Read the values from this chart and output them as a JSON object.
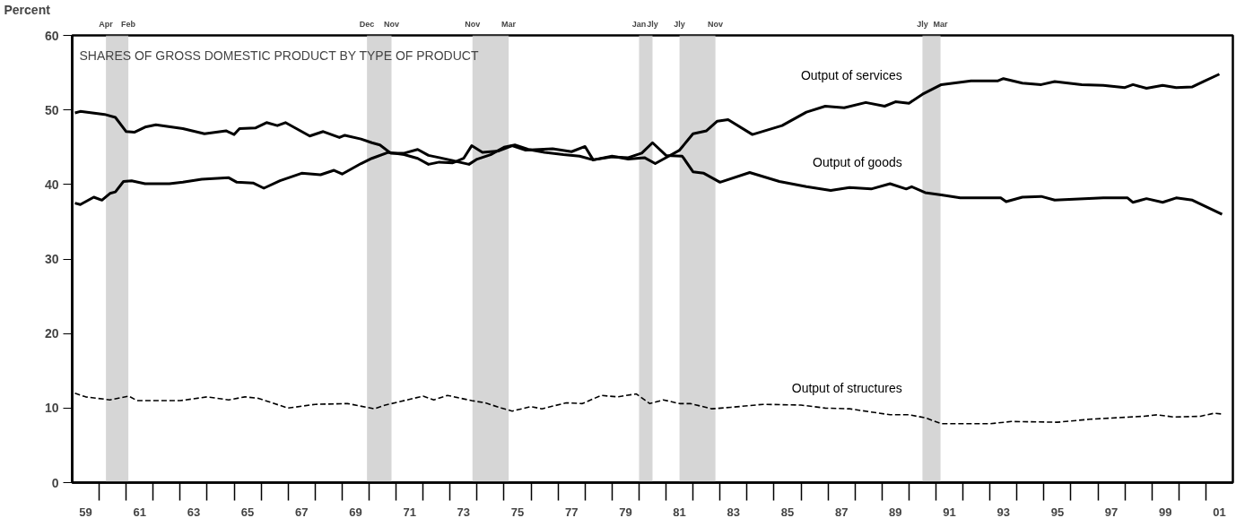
{
  "chart_data": {
    "type": "line",
    "title": "SHARES OF GROSS DOMESTIC PRODUCT BY TYPE OF PRODUCT",
    "ylabel": "Percent",
    "xlim": [
      1958.5,
      2001.5
    ],
    "ylim": [
      0,
      60
    ],
    "yticks": [
      0,
      10,
      20,
      30,
      40,
      50,
      60
    ],
    "xticks": [
      {
        "value": 1959,
        "label": "59"
      },
      {
        "value": 1961,
        "label": "61"
      },
      {
        "value": 1963,
        "label": "63"
      },
      {
        "value": 1965,
        "label": "65"
      },
      {
        "value": 1967,
        "label": "67"
      },
      {
        "value": 1969,
        "label": "69"
      },
      {
        "value": 1971,
        "label": "71"
      },
      {
        "value": 1973,
        "label": "73"
      },
      {
        "value": 1975,
        "label": "75"
      },
      {
        "value": 1977,
        "label": "77"
      },
      {
        "value": 1979,
        "label": "79"
      },
      {
        "value": 1981,
        "label": "81"
      },
      {
        "value": 1983,
        "label": "83"
      },
      {
        "value": 1985,
        "label": "85"
      },
      {
        "value": 1987,
        "label": "87"
      },
      {
        "value": 1989,
        "label": "89"
      },
      {
        "value": 1991,
        "label": "91"
      },
      {
        "value": 1993,
        "label": "93"
      },
      {
        "value": 1995,
        "label": "95"
      },
      {
        "value": 1997,
        "label": "97"
      },
      {
        "value": 1999,
        "label": "99"
      },
      {
        "value": 2001,
        "label": "01"
      }
    ],
    "annotations": [
      {
        "text": "Apr",
        "x": 1959.75,
        "y": 60
      },
      {
        "text": "Feb",
        "x": 1960.58,
        "y": 60
      },
      {
        "text": "Dec",
        "x": 1969.42,
        "y": 60
      },
      {
        "text": "Nov",
        "x": 1970.33,
        "y": 60
      },
      {
        "text": "Nov",
        "x": 1973.33,
        "y": 60
      },
      {
        "text": "Mar",
        "x": 1974.67,
        "y": 60
      },
      {
        "text": "Jan",
        "x": 1979.5,
        "y": 60
      },
      {
        "text": "Jly",
        "x": 1980.0,
        "y": 60
      },
      {
        "text": "Jly",
        "x": 1981.0,
        "y": 60
      },
      {
        "text": "Nov",
        "x": 1982.33,
        "y": 60
      },
      {
        "text": "Jly",
        "x": 1990.0,
        "y": 60
      },
      {
        "text": "Mar",
        "x": 1990.67,
        "y": 60
      }
    ],
    "bands": [
      {
        "axis": "x",
        "from": 1959.75,
        "to": 1960.58,
        "color": "#cccccc"
      },
      {
        "axis": "x",
        "from": 1969.42,
        "to": 1970.33,
        "color": "#cccccc"
      },
      {
        "axis": "x",
        "from": 1973.33,
        "to": 1974.67,
        "color": "#cccccc"
      },
      {
        "axis": "x",
        "from": 1979.5,
        "to": 1980.0,
        "color": "#cccccc"
      },
      {
        "axis": "x",
        "from": 1981.0,
        "to": 1982.33,
        "color": "#cccccc"
      },
      {
        "axis": "x",
        "from": 1990.0,
        "to": 1990.67,
        "color": "#cccccc"
      }
    ],
    "series": [
      {
        "name": "Output of services",
        "color": "#000000",
        "line_style": "solid",
        "x": [
          1958.6,
          1958.8,
          1959.7,
          1960.1,
          1960.5,
          1960.8,
          1961.2,
          1961.6,
          1962.6,
          1963.4,
          1964.2,
          1964.5,
          1964.7,
          1965.3,
          1965.7,
          1966.1,
          1966.4,
          1967.3,
          1967.8,
          1968.4,
          1968.6,
          1969.2,
          1969.6,
          1969.9,
          1970.3,
          1970.8,
          1971.3,
          1971.7,
          1972.1,
          1972.6,
          1973.2,
          1973.5,
          1974.0,
          1974.5,
          1974.9,
          1975.4,
          1976.0,
          1976.7,
          1977.3,
          1977.8,
          1978.5,
          1979.1,
          1979.7,
          1980.1,
          1980.6,
          1981.0,
          1981.5,
          1982.0,
          1982.4,
          1982.8,
          1983.7,
          1984.8,
          1985.7,
          1986.4,
          1987.1,
          1987.9,
          1988.6,
          1989.0,
          1989.5,
          1990.0,
          1990.7,
          1991.8,
          1992.8,
          1993.0,
          1993.7,
          1994.4,
          1994.9,
          1995.9,
          1996.7,
          1997.5,
          1997.8,
          1998.3,
          1998.9,
          1999.4,
          2000.0,
          2000.4,
          2001.0
        ],
        "values": [
          49.6,
          49.8,
          49.4,
          49.0,
          47.1,
          47.0,
          47.7,
          48.0,
          47.5,
          46.8,
          47.2,
          46.7,
          47.5,
          47.6,
          48.3,
          47.9,
          48.3,
          46.5,
          47.1,
          46.3,
          46.6,
          46.1,
          45.6,
          45.3,
          44.2,
          44.2,
          44.7,
          43.9,
          43.6,
          43.2,
          42.7,
          43.4,
          44.0,
          45.0,
          45.3,
          44.7,
          44.3,
          44.0,
          43.8,
          43.3,
          43.8,
          43.4,
          43.6,
          42.8,
          43.8,
          44.6,
          46.8,
          47.2,
          48.5,
          48.7,
          46.7,
          47.9,
          49.7,
          50.5,
          50.3,
          51.0,
          50.5,
          51.1,
          50.9,
          52.1,
          53.4,
          53.9,
          53.9,
          54.2,
          53.6,
          53.4,
          53.8,
          53.4,
          53.3,
          53.0,
          53.4,
          52.9,
          53.3,
          53.0,
          53.1,
          53.8,
          54.8
        ]
      },
      {
        "name": "Output of goods",
        "color": "#000000",
        "line_style": "solid",
        "x": [
          1958.6,
          1958.8,
          1959.3,
          1959.6,
          1959.9,
          1960.1,
          1960.4,
          1960.7,
          1961.2,
          1962.1,
          1962.6,
          1963.3,
          1964.3,
          1964.6,
          1965.2,
          1965.6,
          1966.2,
          1967.0,
          1967.7,
          1968.2,
          1968.5,
          1969.2,
          1969.6,
          1970.2,
          1970.8,
          1971.3,
          1971.7,
          1972.1,
          1972.6,
          1973.0,
          1973.3,
          1973.7,
          1974.3,
          1974.8,
          1975.3,
          1976.3,
          1977.0,
          1977.5,
          1977.8,
          1978.5,
          1979.1,
          1979.6,
          1980.0,
          1980.5,
          1981.1,
          1981.5,
          1981.9,
          1982.5,
          1983.6,
          1984.7,
          1985.7,
          1986.6,
          1987.3,
          1988.1,
          1988.8,
          1989.4,
          1989.6,
          1990.1,
          1990.7,
          1991.4,
          1992.9,
          1993.1,
          1993.7,
          1994.4,
          1994.9,
          1996.7,
          1997.6,
          1997.8,
          1998.3,
          1998.9,
          1999.4,
          2000.0,
          2001.1
        ],
        "values": [
          37.5,
          37.3,
          38.3,
          37.9,
          38.8,
          39.0,
          40.4,
          40.5,
          40.1,
          40.1,
          40.3,
          40.7,
          40.9,
          40.3,
          40.2,
          39.5,
          40.5,
          41.5,
          41.3,
          41.9,
          41.4,
          42.8,
          43.5,
          44.3,
          44.0,
          43.5,
          42.7,
          43.0,
          42.9,
          43.5,
          45.2,
          44.3,
          44.5,
          45.2,
          44.6,
          44.8,
          44.4,
          45.1,
          43.3,
          43.7,
          43.6,
          44.2,
          45.6,
          43.9,
          43.8,
          41.7,
          41.5,
          40.3,
          41.6,
          40.4,
          39.7,
          39.2,
          39.6,
          39.4,
          40.1,
          39.4,
          39.7,
          38.9,
          38.6,
          38.2,
          38.2,
          37.7,
          38.3,
          38.4,
          37.9,
          38.2,
          38.2,
          37.6,
          38.1,
          37.6,
          38.2,
          37.9,
          36.0
        ]
      },
      {
        "name": "Output of structures",
        "color": "#000000",
        "line_style": "dashed",
        "x": [
          1958.6,
          1959.0,
          1959.9,
          1960.6,
          1960.9,
          1962.5,
          1963.5,
          1964.3,
          1964.9,
          1965.4,
          1966.5,
          1967.5,
          1968.7,
          1969.7,
          1970.1,
          1971.5,
          1971.9,
          1972.4,
          1973.3,
          1973.8,
          1974.4,
          1974.8,
          1975.5,
          1975.9,
          1976.8,
          1977.4,
          1978.1,
          1978.7,
          1979.4,
          1979.9,
          1980.4,
          1981.0,
          1981.4,
          1982.2,
          1982.9,
          1984.1,
          1985.5,
          1986.4,
          1987.3,
          1988.8,
          1989.5,
          1990.1,
          1990.7,
          1992.5,
          1993.3,
          1995.0,
          1996.2,
          1998.2,
          1998.7,
          1999.3,
          2000.3,
          2000.8,
          2001.1
        ],
        "values": [
          12.0,
          11.5,
          11.1,
          11.6,
          11.0,
          11.0,
          11.5,
          11.1,
          11.5,
          11.3,
          10.0,
          10.5,
          10.6,
          9.9,
          10.4,
          11.6,
          11.1,
          11.7,
          11.0,
          10.7,
          10.0,
          9.6,
          10.2,
          9.9,
          10.7,
          10.6,
          11.7,
          11.5,
          11.9,
          10.6,
          11.1,
          10.6,
          10.6,
          9.9,
          10.1,
          10.5,
          10.4,
          10.0,
          9.9,
          9.1,
          9.1,
          8.7,
          7.9,
          7.9,
          8.2,
          8.1,
          8.5,
          8.9,
          9.1,
          8.8,
          8.9,
          9.3,
          9.2
        ]
      }
    ]
  }
}
